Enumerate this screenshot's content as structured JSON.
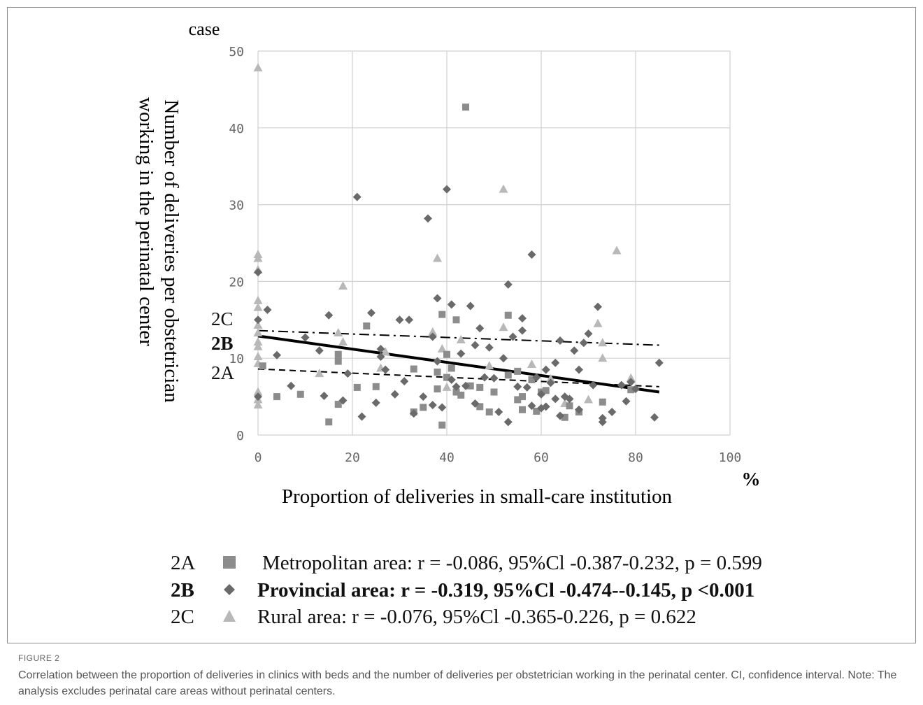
{
  "figure": {
    "label": "FIGURE 2",
    "caption": "Correlation between the proportion of deliveries in clinics with beds and the number of deliveries per obstetrician working in the perinatal center. CI, confidence interval. Note: The analysis excludes perinatal care areas without perinatal centers."
  },
  "chart_data": {
    "type": "scatter",
    "xlabel": "Proportion of deliveries in small-care institution",
    "x_unit": "%",
    "ylabel": "Number of deliveries per obstetrician working in the perinatal center",
    "y_unit": "case",
    "xlim": [
      0,
      100
    ],
    "ylim": [
      0,
      50
    ],
    "x_ticks": [
      "0",
      "20",
      "40",
      "60",
      "80",
      "100"
    ],
    "y_ticks": [
      "0",
      "10",
      "20",
      "30",
      "40",
      "50"
    ],
    "grid": true,
    "series": [
      {
        "name": "2A",
        "label": "Metropolitan area: r = -0.086, 95%Cl -0.387-0.232, p = 0.599",
        "marker": "square",
        "color": "#8c8c8c",
        "bold": false,
        "trend": {
          "x": [
            0,
            85
          ],
          "y": [
            8.6,
            6.3
          ],
          "style": "dashed"
        },
        "points": [
          [
            1,
            9
          ],
          [
            4,
            5
          ],
          [
            9,
            5.3
          ],
          [
            15,
            1.7
          ],
          [
            17,
            4
          ],
          [
            17,
            10.5
          ],
          [
            17,
            9.6
          ],
          [
            23,
            14.2
          ],
          [
            21,
            6.2
          ],
          [
            25,
            6.3
          ],
          [
            33,
            3
          ],
          [
            33,
            8.6
          ],
          [
            35,
            3.6
          ],
          [
            38,
            8.2
          ],
          [
            38,
            6
          ],
          [
            39,
            15.7
          ],
          [
            39,
            1.3
          ],
          [
            40,
            7.5
          ],
          [
            40,
            10.5
          ],
          [
            41,
            8.7
          ],
          [
            42,
            5.6
          ],
          [
            42,
            15
          ],
          [
            43,
            5.2
          ],
          [
            44,
            42.7
          ],
          [
            45,
            6.4
          ],
          [
            47,
            3.7
          ],
          [
            47,
            6.2
          ],
          [
            49,
            3
          ],
          [
            50,
            5.6
          ],
          [
            53,
            15.6
          ],
          [
            53,
            7.8
          ],
          [
            55,
            4.6
          ],
          [
            55,
            8.3
          ],
          [
            56,
            5
          ],
          [
            56,
            3.3
          ],
          [
            58,
            7.2
          ],
          [
            59,
            3.1
          ],
          [
            60,
            5.6
          ],
          [
            61,
            5.8
          ],
          [
            65,
            2.3
          ],
          [
            66,
            3.8
          ],
          [
            68,
            3
          ],
          [
            73,
            4.3
          ],
          [
            79,
            5.9
          ]
        ]
      },
      {
        "name": "2B",
        "label": "Provincial area: r = -0.319, 95%Cl -0.474--0.145, p <0.001",
        "marker": "diamond",
        "color": "#6a6a6a",
        "bold": true,
        "trend": {
          "x": [
            0,
            85
          ],
          "y": [
            12.9,
            5.6
          ],
          "style": "solid"
        },
        "points": [
          [
            0,
            21.2
          ],
          [
            0,
            15
          ],
          [
            0,
            5
          ],
          [
            2,
            16.3
          ],
          [
            4,
            10.4
          ],
          [
            7,
            6.4
          ],
          [
            10,
            12.7
          ],
          [
            13,
            11
          ],
          [
            14,
            5.1
          ],
          [
            15,
            15.6
          ],
          [
            18,
            4.5
          ],
          [
            19,
            8
          ],
          [
            21,
            31
          ],
          [
            22,
            2.4
          ],
          [
            24,
            15.9
          ],
          [
            25,
            4.2
          ],
          [
            26,
            11.2
          ],
          [
            26,
            10.2
          ],
          [
            27,
            8.5
          ],
          [
            29,
            5.3
          ],
          [
            30,
            15
          ],
          [
            31,
            7
          ],
          [
            32,
            15
          ],
          [
            33,
            2.8
          ],
          [
            35,
            5
          ],
          [
            36,
            28.2
          ],
          [
            37,
            3.9
          ],
          [
            37,
            12.8
          ],
          [
            38,
            17.8
          ],
          [
            38,
            9.6
          ],
          [
            39,
            3.6
          ],
          [
            40,
            32
          ],
          [
            41,
            17
          ],
          [
            41,
            7.2
          ],
          [
            42,
            6.3
          ],
          [
            43,
            10.6
          ],
          [
            44,
            6.4
          ],
          [
            45,
            16.8
          ],
          [
            46,
            4.1
          ],
          [
            46,
            11.7
          ],
          [
            47,
            13.9
          ],
          [
            48,
            7.5
          ],
          [
            49,
            11.4
          ],
          [
            50,
            7.4
          ],
          [
            51,
            3
          ],
          [
            52,
            10
          ],
          [
            53,
            19.6
          ],
          [
            53,
            1.7
          ],
          [
            54,
            12.8
          ],
          [
            55,
            6.3
          ],
          [
            56,
            15.2
          ],
          [
            56,
            13.6
          ],
          [
            57,
            6.2
          ],
          [
            58,
            23.5
          ],
          [
            58,
            3.8
          ],
          [
            59,
            7.5
          ],
          [
            60,
            5.3
          ],
          [
            60,
            3.5
          ],
          [
            61,
            8.5
          ],
          [
            61,
            3.7
          ],
          [
            62,
            6.8
          ],
          [
            63,
            9.4
          ],
          [
            63,
            4.7
          ],
          [
            64,
            12.3
          ],
          [
            64,
            2.5
          ],
          [
            65,
            5
          ],
          [
            66,
            4.7
          ],
          [
            67,
            11
          ],
          [
            68,
            8.5
          ],
          [
            68,
            3.3
          ],
          [
            69,
            12
          ],
          [
            70,
            13.2
          ],
          [
            71,
            6.5
          ],
          [
            72,
            16.7
          ],
          [
            73,
            2.2
          ],
          [
            73,
            1.7
          ],
          [
            75,
            3
          ],
          [
            77,
            6.5
          ],
          [
            78,
            4.4
          ],
          [
            79,
            6.9
          ],
          [
            80,
            6
          ],
          [
            84,
            2.3
          ],
          [
            85,
            9.4
          ]
        ]
      },
      {
        "name": "2C",
        "label": "Rural area: r = -0.076, 95%Cl -0.365-0.226, p = 0.622",
        "marker": "triangle",
        "color": "#b8b8b8",
        "bold": false,
        "trend": {
          "x": [
            0,
            85
          ],
          "y": [
            13.6,
            11.7
          ],
          "style": "dashdot"
        },
        "points": [
          [
            0,
            47.8
          ],
          [
            0,
            23.5
          ],
          [
            0,
            23
          ],
          [
            0,
            21.5
          ],
          [
            0,
            17.5
          ],
          [
            0,
            16.6
          ],
          [
            0,
            14.3
          ],
          [
            0,
            13.3
          ],
          [
            0,
            12.1
          ],
          [
            0,
            11.5
          ],
          [
            0,
            10.2
          ],
          [
            0,
            9.3
          ],
          [
            0,
            5.6
          ],
          [
            0,
            4.6
          ],
          [
            0,
            3.9
          ],
          [
            13,
            8
          ],
          [
            17,
            13.3
          ],
          [
            18,
            19.4
          ],
          [
            18,
            12.1
          ],
          [
            26,
            8.7
          ],
          [
            27,
            10.8
          ],
          [
            37,
            13.4
          ],
          [
            38,
            23
          ],
          [
            39,
            11.2
          ],
          [
            40,
            6.2
          ],
          [
            43,
            12.4
          ],
          [
            49,
            9
          ],
          [
            52,
            32
          ],
          [
            52,
            14
          ],
          [
            58,
            9.2
          ],
          [
            62,
            7.3
          ],
          [
            65,
            4.1
          ],
          [
            70,
            4.6
          ],
          [
            72,
            14.5
          ],
          [
            73,
            12
          ],
          [
            73,
            10
          ],
          [
            76,
            24
          ],
          [
            79,
            7.4
          ]
        ]
      }
    ]
  },
  "legend": {
    "items": [
      {
        "code": "2A",
        "text": "Metropolitan area: r = -0.086, 95%Cl -0.387-0.232, p = 0.599"
      },
      {
        "code": "2B",
        "text": "Provincial area: r = -0.319, 95%Cl -0.474--0.145, p <0.001"
      },
      {
        "code": "2C",
        "text": "Rural area: r = -0.076, 95%Cl -0.365-0.226, p = 0.622"
      }
    ]
  }
}
